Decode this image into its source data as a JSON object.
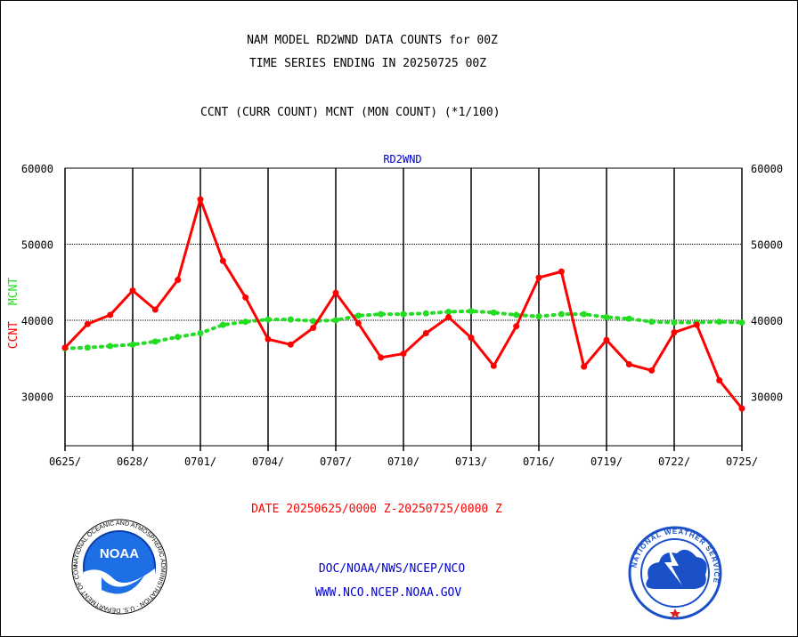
{
  "header": {
    "title_line1": "NAM MODEL RD2WND DATA COUNTS for 00Z",
    "title_line2": "TIME SERIES ENDING IN 20250725 00Z",
    "subtitle": "CCNT (CURR COUNT) MCNT (MON COUNT) (*1/100)",
    "panel_label": "RD2WND"
  },
  "footer": {
    "date_range": "DATE 20250625/0000 Z-20250725/0000 Z",
    "credit_line1": "DOC/NOAA/NWS/NCEP/NCO",
    "credit_line2": "WWW.NCO.NCEP.NOAA.GOV"
  },
  "logos": {
    "left": {
      "icon": "noaa-logo-icon",
      "text": "NOAA",
      "ring_text": "NATIONAL OCEANIC AND ATMOSPHERIC ADMINISTRATION · U.S. DEPARTMENT OF COMMERCE"
    },
    "right": {
      "icon": "nws-logo-icon",
      "ring_text": "NATIONAL WEATHER SERVICE"
    }
  },
  "colors": {
    "ccnt": "#ff0000",
    "mcnt": "#22dd22",
    "grid": "#000000",
    "blue_text": "#0000cc"
  },
  "chart_data": {
    "type": "line",
    "title": "NAM MODEL RD2WND DATA COUNTS for 00Z",
    "ylabel_parts": [
      {
        "text": "CCNT",
        "color": "#ff0000"
      },
      {
        "text": "MCNT",
        "color": "#22dd22"
      }
    ],
    "ylim": [
      23500,
      60000
    ],
    "yticks": [
      30000,
      40000,
      50000,
      60000
    ],
    "ytick_labels": [
      "30000",
      "40000",
      "50000",
      "60000"
    ],
    "xticks": [
      {
        "label": "0625/",
        "index": 0
      },
      {
        "label": "0628/",
        "index": 3
      },
      {
        "label": "0701/",
        "index": 6
      },
      {
        "label": "0704/",
        "index": 9
      },
      {
        "label": "0707/",
        "index": 12
      },
      {
        "label": "0710/",
        "index": 15
      },
      {
        "label": "0713/",
        "index": 18
      },
      {
        "label": "0716/",
        "index": 21
      },
      {
        "label": "0719/",
        "index": 24
      },
      {
        "label": "0722/",
        "index": 27
      },
      {
        "label": "0725/",
        "index": 30
      }
    ],
    "x": [
      "0625",
      "0626",
      "0627",
      "0628",
      "0629",
      "0630",
      "0701",
      "0702",
      "0703",
      "0704",
      "0705",
      "0706",
      "0707",
      "0708",
      "0709",
      "0710",
      "0711",
      "0712",
      "0713",
      "0714",
      "0715",
      "0716",
      "0717",
      "0718",
      "0719",
      "0720",
      "0721",
      "0722",
      "0723",
      "0724",
      "0725"
    ],
    "grid": true,
    "series": [
      {
        "name": "CCNT",
        "color": "#ff0000",
        "style": "solid",
        "values": [
          36400,
          39500,
          40700,
          43900,
          41400,
          45300,
          55900,
          47800,
          43000,
          37500,
          36800,
          39000,
          43600,
          39600,
          35100,
          35600,
          38300,
          40400,
          37700,
          34000,
          39200,
          45600,
          46400,
          33900,
          37400,
          34200,
          33400,
          38400,
          39400,
          32100,
          28400
        ]
      },
      {
        "name": "MCNT",
        "color": "#22dd22",
        "style": "dotted",
        "values": [
          36300,
          36400,
          36600,
          36800,
          37200,
          37800,
          38300,
          39400,
          39800,
          40100,
          40100,
          39900,
          40000,
          40600,
          40800,
          40800,
          40900,
          41100,
          41200,
          41000,
          40700,
          40500,
          40800,
          40800,
          40400,
          40200,
          39800,
          39700,
          39700,
          39800,
          39700
        ]
      }
    ]
  }
}
